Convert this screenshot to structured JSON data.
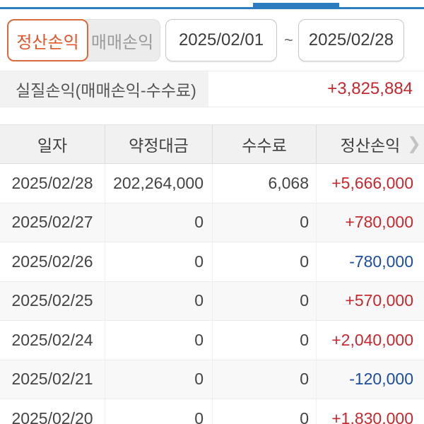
{
  "colors": {
    "accent_blue": "#2b7dc0",
    "tab_active_text": "#e0552a",
    "tab_active_border": "#d96a3e",
    "profit_red": "#c5292e",
    "loss_blue": "#1b4c9e"
  },
  "tabs": [
    {
      "label": "정산손익",
      "active": true
    },
    {
      "label": "매매손익",
      "active": false
    }
  ],
  "date_range": {
    "start": "2025/02/01",
    "separator": "~",
    "end": "2025/02/28"
  },
  "summary": {
    "label": "실질손익(매매손익-수수료)",
    "value": "+3,825,884"
  },
  "table": {
    "columns": [
      "일자",
      "약정대금",
      "수수료",
      "정산손익"
    ],
    "chevron_icon": "❯",
    "rows": [
      {
        "date": "2025/02/28",
        "amount": "202,264,000",
        "fee": "6,068",
        "pnl": "+5,666,000"
      },
      {
        "date": "2025/02/27",
        "amount": "0",
        "fee": "0",
        "pnl": "+780,000"
      },
      {
        "date": "2025/02/26",
        "amount": "0",
        "fee": "0",
        "pnl": "-780,000"
      },
      {
        "date": "2025/02/25",
        "amount": "0",
        "fee": "0",
        "pnl": "+570,000"
      },
      {
        "date": "2025/02/24",
        "amount": "0",
        "fee": "0",
        "pnl": "+2,040,000"
      },
      {
        "date": "2025/02/21",
        "amount": "0",
        "fee": "0",
        "pnl": "-120,000"
      },
      {
        "date": "2025/02/20",
        "amount": "0",
        "fee": "0",
        "pnl": "+1,830,000"
      }
    ]
  }
}
